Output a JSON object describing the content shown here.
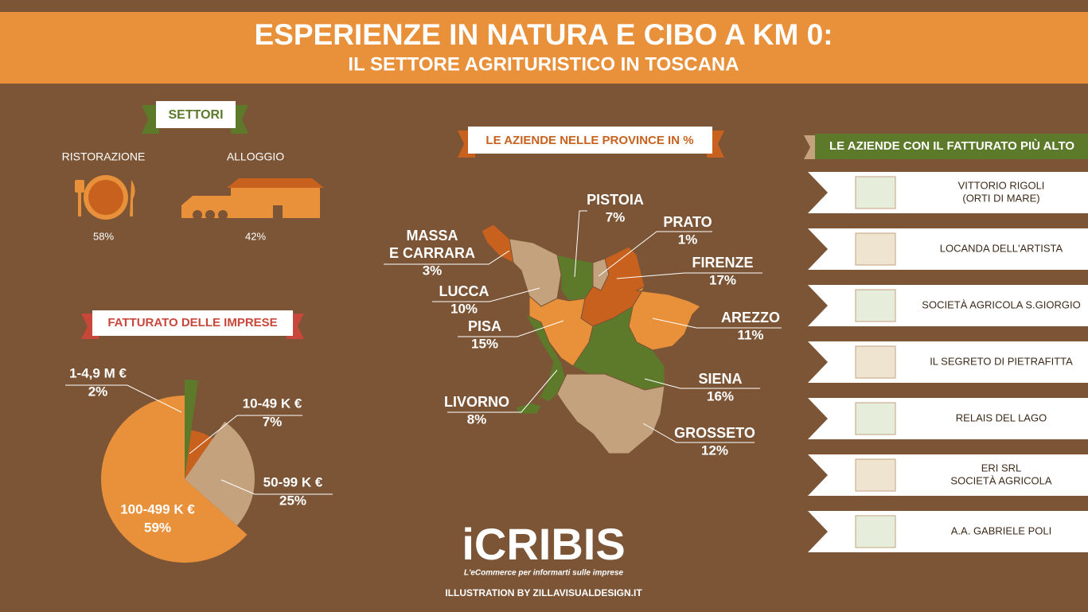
{
  "header": {
    "title": "ESPERIENZE IN NATURA E CIBO A KM 0:",
    "subtitle": "IL SETTORE AGRITURISTICO IN TOSCANA"
  },
  "settori": {
    "title": "SETTORI",
    "items": [
      {
        "label": "RISTORAZIONE",
        "value": "58%"
      },
      {
        "label": "ALLOGGIO",
        "value": "42%"
      }
    ]
  },
  "chart_data": {
    "type": "pie",
    "title": "FATTURATO DELLE IMPRESE",
    "categories": [
      "1-4,9 M €",
      "10-49 K €",
      "50-99 K €",
      "100-499 K €"
    ],
    "values": [
      2,
      7,
      25,
      59
    ],
    "value_labels": [
      "2%",
      "7%",
      "25%",
      "59%"
    ],
    "colors": [
      "#5d7a2b",
      "#c8611e",
      "#c4a27e",
      "#e8913a"
    ]
  },
  "province": {
    "title": "LE AZIENDE NELLE PROVINCE IN %",
    "items": [
      {
        "name": [
          "PISTOIA"
        ],
        "value": "7%"
      },
      {
        "name": [
          "PRATO"
        ],
        "value": "1%"
      },
      {
        "name": [
          "FIRENZE"
        ],
        "value": "17%"
      },
      {
        "name": [
          "AREZZO"
        ],
        "value": "11%"
      },
      {
        "name": [
          "SIENA"
        ],
        "value": "16%"
      },
      {
        "name": [
          "GROSSETO"
        ],
        "value": "12%"
      },
      {
        "name": [
          "LIVORNO"
        ],
        "value": "8%"
      },
      {
        "name": [
          "PISA"
        ],
        "value": "15%"
      },
      {
        "name": [
          "LUCCA"
        ],
        "value": "10%"
      },
      {
        "name": [
          "MASSA",
          "E CARRARA"
        ],
        "value": "3%"
      }
    ]
  },
  "aziende": {
    "title": "LE AZIENDE CON IL FATTURATO PIÙ ALTO",
    "items": [
      [
        "VITTORIO RIGOLI",
        "(ORTI DI MARE)"
      ],
      [
        "LOCANDA DELL'ARTISTA"
      ],
      [
        "SOCIETÀ AGRICOLA S.GIORGIO"
      ],
      [
        "IL SEGRETO DI PIETRAFITTA"
      ],
      [
        "RELAIS DEL LAGO"
      ],
      [
        "ERI SRL",
        "SOCIETÀ AGRICOLA"
      ],
      [
        "A.A. GABRIELE POLI"
      ]
    ]
  },
  "footer": {
    "logo": "iCRIBIS",
    "tagline": "L'eCommerce per informarti sulle imprese",
    "credit": "ILLUSTRATION BY ZILLAVISUALDESIGN.IT"
  }
}
